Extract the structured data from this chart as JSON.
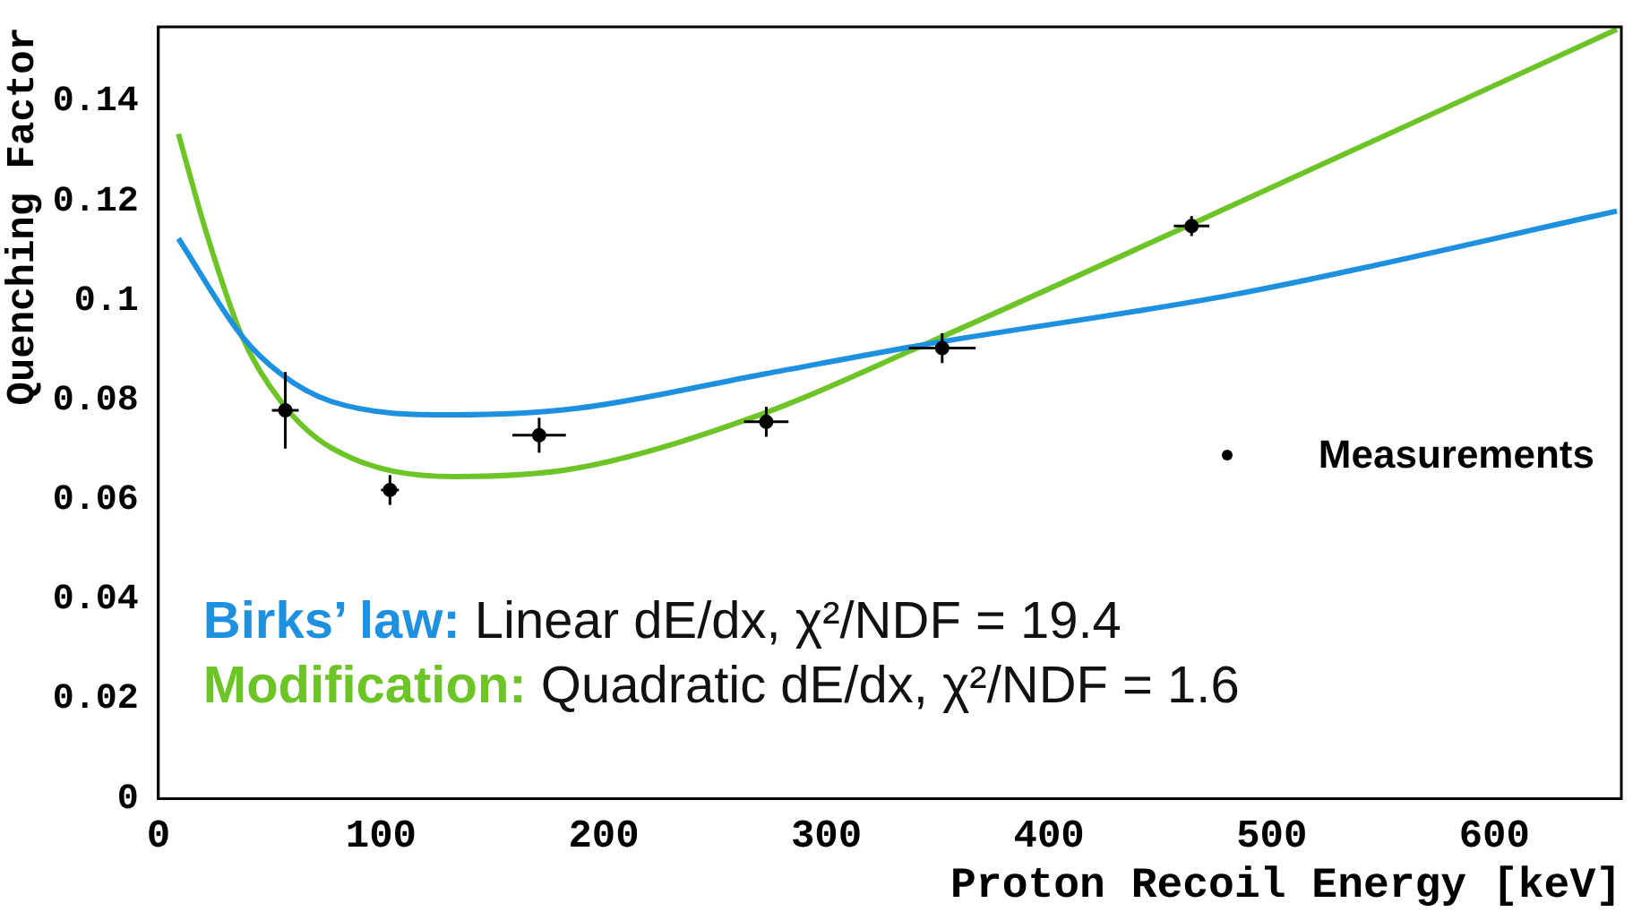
{
  "chart_data": {
    "type": "line",
    "xlabel": "Proton Recoil Energy [keV]",
    "ylabel": "Quenching Factor",
    "xlim": [
      0,
      657
    ],
    "xticks": [
      0,
      100,
      200,
      300,
      400,
      500,
      600
    ],
    "ylim": [
      0,
      0.155
    ],
    "yticks": [
      0,
      0.02,
      0.04,
      0.06,
      0.08,
      0.1,
      0.12,
      0.14
    ],
    "grid": false,
    "legend": "bottom",
    "annotations": [
      "Linear dE/dx, χ²/NDF = 19.4",
      "Quadratic dE/dx, χ²/NDF = 1.6"
    ],
    "series": [
      {
        "name": "Measurements",
        "type": "scatter",
        "marker": "circle",
        "color": "#000000",
        "x": [
          57,
          104,
          171,
          273,
          352,
          464
        ],
        "values": [
          0.078,
          0.062,
          0.073,
          0.0757,
          0.0905,
          0.115
        ],
        "errors": [
          0.0077,
          0.003,
          0.0035,
          0.003,
          0.003,
          0.002
        ],
        "xerrors": [
          6,
          4,
          12,
          10,
          15,
          8
        ]
      },
      {
        "name": "Birks’ law:",
        "marker": "none",
        "color": "#1e90e0",
        "x": [
          9,
          37.5,
          55,
          77.5,
          133,
          188,
          272,
          344,
          486,
          655
        ],
        "values": [
          0.1125,
          0.0929,
          0.0853,
          0.0798,
          0.0771,
          0.0784,
          0.0853,
          0.0912,
          0.1015,
          0.118
        ]
      },
      {
        "name": "Modification:",
        "marker": "none",
        "color": "#6cc426",
        "x": [
          9,
          22,
          37.5,
          55,
          77.5,
          133,
          188,
          272,
          344,
          463,
          655
        ],
        "values": [
          0.1335,
          0.113,
          0.0929,
          0.0798,
          0.0705,
          0.0647,
          0.0664,
          0.0774,
          0.0912,
          0.1152,
          0.1545
        ]
      }
    ]
  }
}
